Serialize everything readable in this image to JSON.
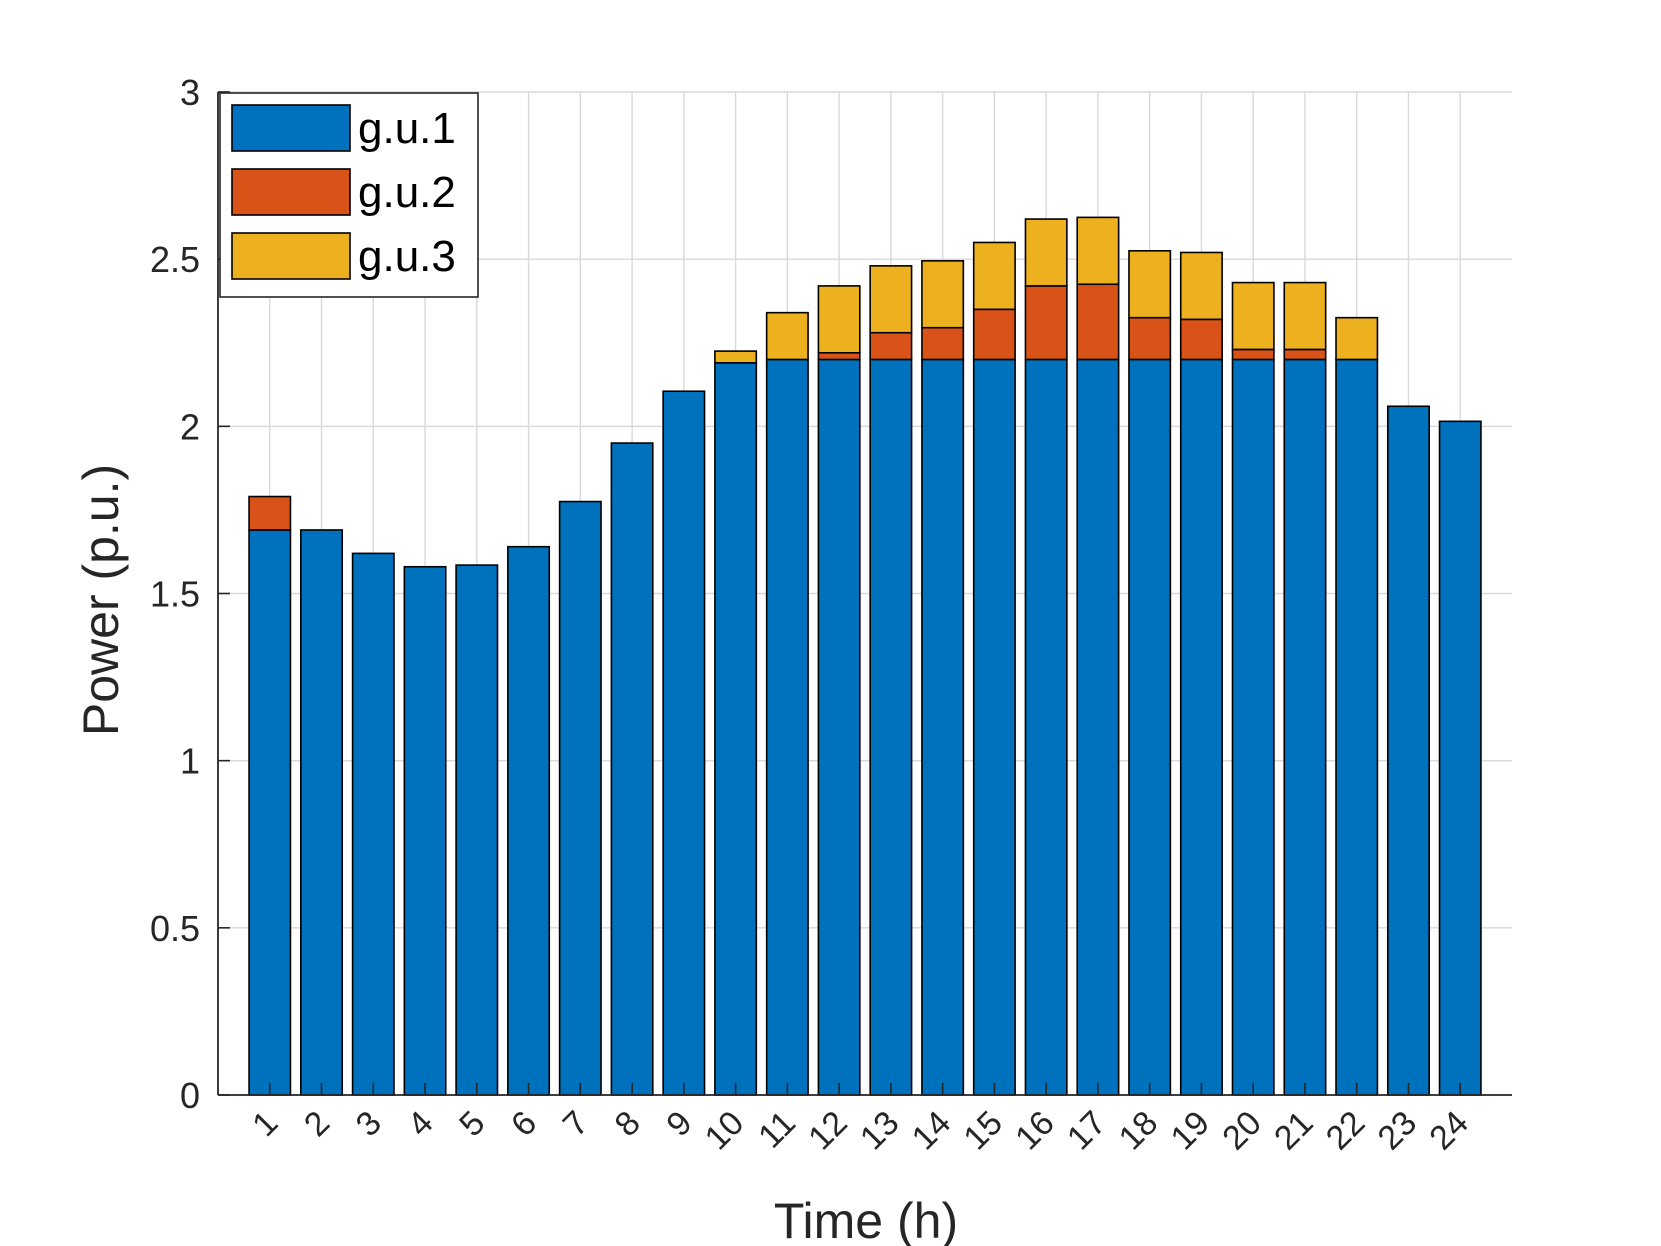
{
  "chart_data": {
    "type": "bar",
    "stacked": true,
    "title": "",
    "xlabel": "Time (h)",
    "ylabel": "Power (p.u.)",
    "categories": [
      "1",
      "2",
      "3",
      "4",
      "5",
      "6",
      "7",
      "8",
      "9",
      "10",
      "11",
      "12",
      "13",
      "14",
      "15",
      "16",
      "17",
      "18",
      "19",
      "20",
      "21",
      "22",
      "23",
      "24"
    ],
    "ylim": [
      0,
      3
    ],
    "yticks": [
      0,
      0.5,
      1,
      1.5,
      2,
      2.5,
      3
    ],
    "ytick_labels": [
      "0",
      "0.5",
      "1",
      "1.5",
      "2",
      "2.5",
      "3"
    ],
    "grid": true,
    "legend_position": "top-left",
    "series": [
      {
        "name": "g.u.1",
        "color": "#0072BD",
        "values": [
          1.69,
          1.69,
          1.62,
          1.58,
          1.585,
          1.64,
          1.775,
          1.95,
          2.105,
          2.19,
          2.2,
          2.2,
          2.2,
          2.2,
          2.2,
          2.2,
          2.2,
          2.2,
          2.2,
          2.2,
          2.2,
          2.2,
          2.06,
          2.015
        ]
      },
      {
        "name": "g.u.2",
        "color": "#D95319",
        "values": [
          0.1,
          0,
          0,
          0,
          0,
          0,
          0,
          0,
          0,
          0,
          0,
          0.02,
          0.08,
          0.095,
          0.15,
          0.22,
          0.225,
          0.125,
          0.12,
          0.03,
          0.03,
          0,
          0,
          0
        ]
      },
      {
        "name": "g.u.3",
        "color": "#EDB120",
        "values": [
          0,
          0,
          0,
          0,
          0,
          0,
          0,
          0,
          0,
          0.035,
          0.14,
          0.2,
          0.2,
          0.2,
          0.2,
          0.2,
          0.2,
          0.2,
          0.2,
          0.2,
          0.2,
          0.125,
          0,
          0
        ]
      }
    ]
  }
}
